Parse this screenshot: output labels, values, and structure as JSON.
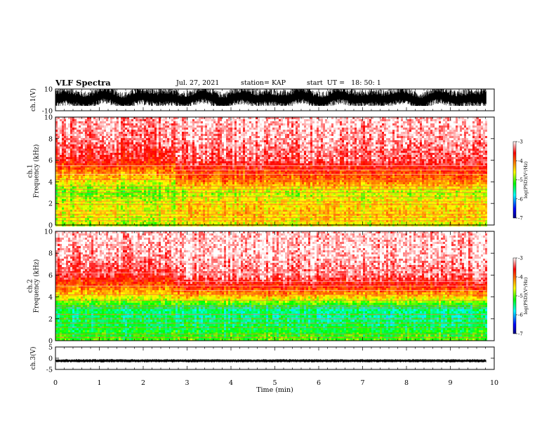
{
  "header": {
    "title": "VLF Spectra",
    "date": "Jul. 27, 2021",
    "station": "station= KAP",
    "start": "start  UT =   18: 50: 1"
  },
  "chart_data": [
    {
      "type": "line",
      "name": "ch1-waveform",
      "ylabel": "ch.1(V)",
      "xlim": [
        0,
        10
      ],
      "ylim": [
        -10,
        10
      ],
      "yticks": [
        "10",
        "-10"
      ],
      "data_extent_x": [
        0,
        9.82
      ],
      "amplitude_note_range": [
        -5,
        10
      ]
    },
    {
      "type": "heatmap",
      "name": "ch1-spectrogram",
      "ylabel": "ch.1\nFrequency (kHz)",
      "xlim": [
        0,
        10
      ],
      "ylim": [
        0,
        10
      ],
      "yticks": [
        "0",
        "2",
        "4",
        "6",
        "8",
        "10"
      ],
      "colorbar": {
        "label": "log(PSD)(V²/Hz)",
        "range": [
          -7,
          -3
        ],
        "ticks": [
          "-3",
          "-4",
          "-5",
          "-6",
          "-7"
        ]
      },
      "levels_by_freq_kHz": {
        "freq": [
          0,
          1,
          2,
          3,
          4,
          5,
          6,
          8,
          10
        ],
        "before_2_7_min": [
          -4.8,
          -4.6,
          -4.7,
          -5.0,
          -4.6,
          -4.1,
          -3.6,
          -3.3,
          -3.2
        ],
        "after_2_7_min": [
          -4.6,
          -4.4,
          -4.5,
          -4.8,
          -4.1,
          -3.8,
          -3.4,
          -3.2,
          -3.1
        ]
      }
    },
    {
      "type": "heatmap",
      "name": "ch2-spectrogram",
      "ylabel": "ch.2\nFrequency (kHz)",
      "xlim": [
        0,
        10
      ],
      "ylim": [
        0,
        10
      ],
      "yticks": [
        "0",
        "2",
        "4",
        "6",
        "8",
        "10"
      ],
      "colorbar": {
        "label": "log(PSD)(V²/Hz)",
        "range": [
          -7,
          -3
        ],
        "ticks": [
          "-3",
          "-4",
          "-5",
          "-6",
          "-7"
        ]
      },
      "levels_by_freq_kHz": {
        "freq": [
          0,
          1,
          2,
          3,
          4,
          5,
          6,
          8,
          10
        ],
        "before_2_7_min": [
          -5.1,
          -5.3,
          -5.4,
          -5.4,
          -4.6,
          -4.0,
          -3.5,
          -3.2,
          -3.1
        ],
        "after_2_7_min": [
          -5.0,
          -5.3,
          -5.5,
          -5.5,
          -4.4,
          -3.7,
          -3.3,
          -3.1,
          -3.1
        ]
      }
    },
    {
      "type": "line",
      "name": "ch3-waveform",
      "ylabel": "ch.3(V)",
      "xlabel": "Time (min)",
      "xlim": [
        0,
        10
      ],
      "ylim": [
        -5,
        5
      ],
      "yticks": [
        "5",
        "0",
        "-5"
      ],
      "xticks": [
        "0",
        "1",
        "2",
        "3",
        "4",
        "5",
        "6",
        "7",
        "8",
        "9",
        "10"
      ],
      "band_y": [
        -1.5,
        -0.8
      ],
      "data_extent_x": [
        0,
        9.82
      ]
    }
  ],
  "colors": {
    "colormap": [
      "#000080",
      "#0000ff",
      "#00ffff",
      "#00ff00",
      "#ffff00",
      "#ff8000",
      "#ff0000",
      "#ffffff"
    ],
    "axes": "#000000"
  }
}
